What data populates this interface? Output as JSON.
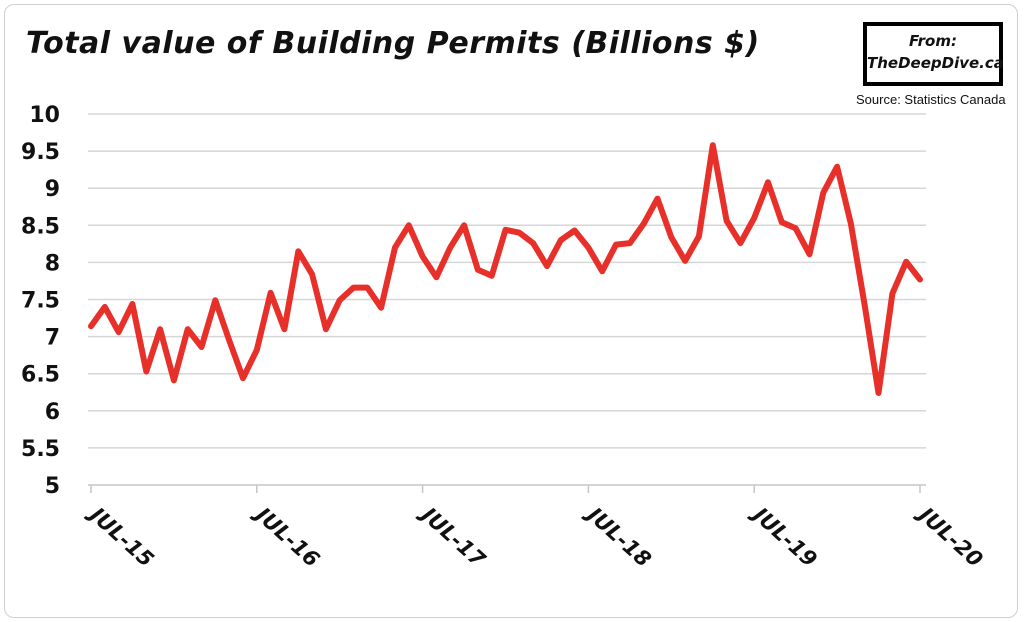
{
  "header": {
    "title": "Total value of Building Permits (Billions $)",
    "badge_from": "From:",
    "badge_site": "TheDeepDive.ca",
    "source": "Source: Statistics Canada"
  },
  "chart_data": {
    "type": "line",
    "title": "Total value of Building Permits (Billions $)",
    "xlabel": "",
    "ylabel": "",
    "ylim": [
      5,
      10
    ],
    "yticks": [
      "5",
      "5.5",
      "6",
      "6.5",
      "7",
      "7.5",
      "8",
      "8.5",
      "9",
      "9.5",
      "10"
    ],
    "xtick_labels": [
      "Jul-15",
      "Jul-16",
      "Jul-17",
      "Jul-18",
      "Jul-19",
      "Jul-20"
    ],
    "xtick_index": [
      0,
      12,
      24,
      36,
      48,
      60
    ],
    "grid": "horizontal",
    "line_color": "#e8302a",
    "series": [
      {
        "x": [
          "Jul-15",
          "Aug-15",
          "Sep-15",
          "Oct-15",
          "Nov-15",
          "Dec-15",
          "Jan-16",
          "Feb-16",
          "Mar-16",
          "Apr-16",
          "May-16",
          "Jun-16",
          "Jul-16",
          "Aug-16",
          "Sep-16",
          "Oct-16",
          "Nov-16",
          "Dec-16",
          "Jan-17",
          "Feb-17",
          "Mar-17",
          "Apr-17",
          "May-17",
          "Jun-17",
          "Jul-17",
          "Aug-17",
          "Sep-17",
          "Oct-17",
          "Nov-17",
          "Dec-17",
          "Jan-18",
          "Feb-18",
          "Mar-18",
          "Apr-18",
          "May-18",
          "Jun-18",
          "Jul-18",
          "Aug-18",
          "Sep-18",
          "Oct-18",
          "Nov-18",
          "Dec-18",
          "Jan-19",
          "Feb-19",
          "Mar-19",
          "Apr-19",
          "May-19",
          "Jun-19",
          "Jul-19",
          "Aug-19",
          "Sep-19",
          "Oct-19",
          "Nov-19",
          "Dec-19",
          "Jan-20",
          "Feb-20",
          "Mar-20",
          "Apr-20",
          "May-20",
          "Jun-20",
          "Jul-20"
        ],
        "values": [
          7.14,
          7.4,
          7.06,
          7.44,
          6.53,
          7.1,
          6.41,
          7.1,
          6.86,
          7.49,
          6.95,
          6.44,
          6.82,
          7.59,
          7.1,
          8.15,
          7.84,
          7.1,
          7.49,
          7.66,
          7.66,
          7.39,
          8.2,
          8.5,
          8.08,
          7.8,
          8.2,
          8.5,
          7.9,
          7.82,
          8.44,
          8.4,
          8.26,
          7.95,
          8.3,
          8.43,
          8.2,
          7.88,
          8.24,
          8.26,
          8.52,
          8.86,
          8.34,
          8.02,
          8.35,
          9.58,
          8.56,
          8.26,
          8.6,
          9.08,
          8.54,
          8.46,
          8.11,
          8.94,
          9.29,
          8.52,
          7.42,
          6.24,
          7.58,
          8.01,
          7.77
        ]
      }
    ]
  }
}
